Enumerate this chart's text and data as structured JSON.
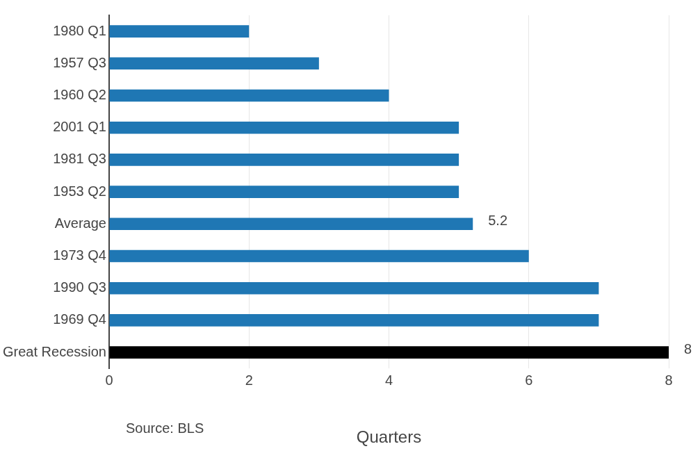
{
  "chart_data": {
    "type": "bar",
    "orientation": "horizontal",
    "xlabel": "Quarters",
    "categories": [
      "1980 Q1",
      "1957 Q3",
      "1960 Q2",
      "2001 Q1",
      "1981 Q3",
      "1953 Q2",
      "Average",
      "1973 Q4",
      "1990 Q3",
      "1969 Q4",
      "Great Recession"
    ],
    "values": [
      2,
      3,
      4,
      5,
      5,
      5,
      5.2,
      6,
      7,
      7,
      8
    ],
    "colors": [
      "#1f77b4",
      "#1f77b4",
      "#1f77b4",
      "#1f77b4",
      "#1f77b4",
      "#1f77b4",
      "#1f77b4",
      "#1f77b4",
      "#1f77b4",
      "#1f77b4",
      "#000000"
    ],
    "value_labels": [
      null,
      null,
      null,
      null,
      null,
      null,
      "5.2",
      null,
      null,
      null,
      "8"
    ],
    "xlim": [
      0,
      8
    ],
    "xticks": [
      0,
      2,
      4,
      6,
      8
    ],
    "grid": "x",
    "legend": false,
    "annotations": [
      "Source: BLS"
    ]
  }
}
